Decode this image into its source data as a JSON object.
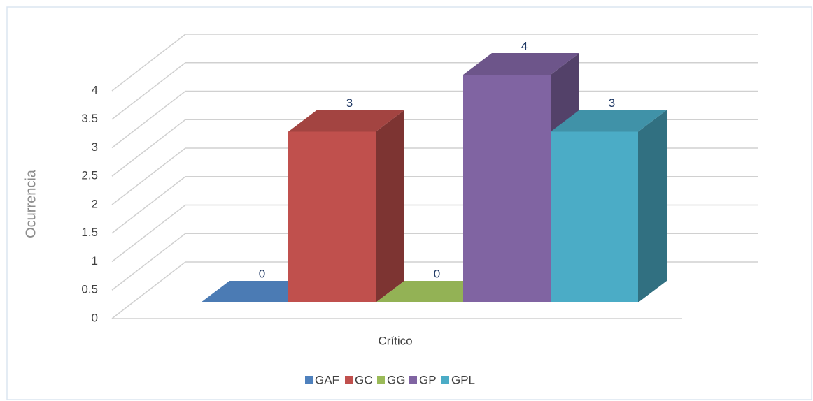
{
  "chart_data": {
    "type": "bar3d",
    "categories": [
      "Crítico"
    ],
    "y_label": "Ocurrencia",
    "series": [
      {
        "name": "GAF",
        "color": "#4f81bd",
        "values": [
          0
        ]
      },
      {
        "name": "GC",
        "color": "#c0504d",
        "values": [
          3
        ]
      },
      {
        "name": "GG",
        "color": "#9bbb59",
        "values": [
          0
        ]
      },
      {
        "name": "GP",
        "color": "#8064a2",
        "values": [
          4
        ]
      },
      {
        "name": "GPL",
        "color": "#4bacc6",
        "values": [
          3
        ]
      }
    ],
    "ylim": [
      0,
      4
    ],
    "yticks": [
      0,
      0.5,
      1,
      1.5,
      2,
      2.5,
      3,
      3.5,
      4
    ],
    "grid": true,
    "legend": "bottom"
  }
}
